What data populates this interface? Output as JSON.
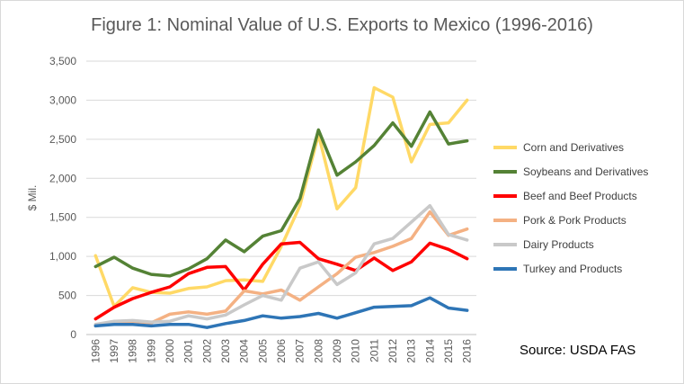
{
  "chart_data": {
    "type": "line",
    "title": "Figure 1: Nominal Value of U.S. Exports to Mexico (1996-2016)",
    "ylabel": "$ Mil.",
    "xlabel": "",
    "ylim": [
      0,
      3500
    ],
    "yticks": [
      "0",
      "500",
      "1,000",
      "1,500",
      "2,000",
      "2,500",
      "3,000",
      "3,500"
    ],
    "grid": true,
    "legend_position": "right",
    "x": [
      "1996",
      "1997",
      "1998",
      "1999",
      "2000",
      "2001",
      "2002",
      "2003",
      "2004",
      "2005",
      "2006",
      "2007",
      "2008",
      "2009",
      "2010",
      "2011",
      "2012",
      "2013",
      "2014",
      "2015",
      "2016"
    ],
    "series": [
      {
        "name": "Corn and Derivatives",
        "color": "#ffd966",
        "values": [
          1010,
          360,
          600,
          540,
          530,
          590,
          610,
          690,
          700,
          680,
          1130,
          1650,
          2560,
          1610,
          1880,
          3160,
          3040,
          2210,
          2690,
          2710,
          3000
        ]
      },
      {
        "name": "Soybeans and Derivatives",
        "color": "#548235",
        "values": [
          870,
          990,
          850,
          770,
          750,
          840,
          970,
          1210,
          1060,
          1260,
          1330,
          1740,
          2620,
          2040,
          2210,
          2420,
          2710,
          2410,
          2850,
          2440,
          2480
        ]
      },
      {
        "name": "Beef and Beef Products",
        "color": "#ff0000",
        "values": [
          200,
          350,
          460,
          540,
          610,
          780,
          860,
          870,
          570,
          900,
          1160,
          1180,
          970,
          900,
          820,
          980,
          820,
          930,
          1170,
          1090,
          970
        ]
      },
      {
        "name": "Pork & Pork Products",
        "color": "#f4b183",
        "values": [
          110,
          150,
          170,
          150,
          260,
          290,
          260,
          300,
          560,
          520,
          570,
          440,
          610,
          780,
          990,
          1050,
          1130,
          1230,
          1570,
          1270,
          1350
        ]
      },
      {
        "name": "Dairy Products",
        "color": "#c9c9c9",
        "values": [
          130,
          170,
          180,
          160,
          170,
          240,
          200,
          250,
          380,
          500,
          440,
          850,
          930,
          640,
          790,
          1160,
          1230,
          1440,
          1650,
          1280,
          1210
        ]
      },
      {
        "name": "Turkey and Products",
        "color": "#2e75b6",
        "values": [
          110,
          130,
          130,
          110,
          130,
          130,
          90,
          140,
          180,
          240,
          210,
          230,
          270,
          210,
          280,
          350,
          360,
          370,
          470,
          340,
          310
        ]
      }
    ]
  },
  "source_text": "Source: USDA FAS"
}
